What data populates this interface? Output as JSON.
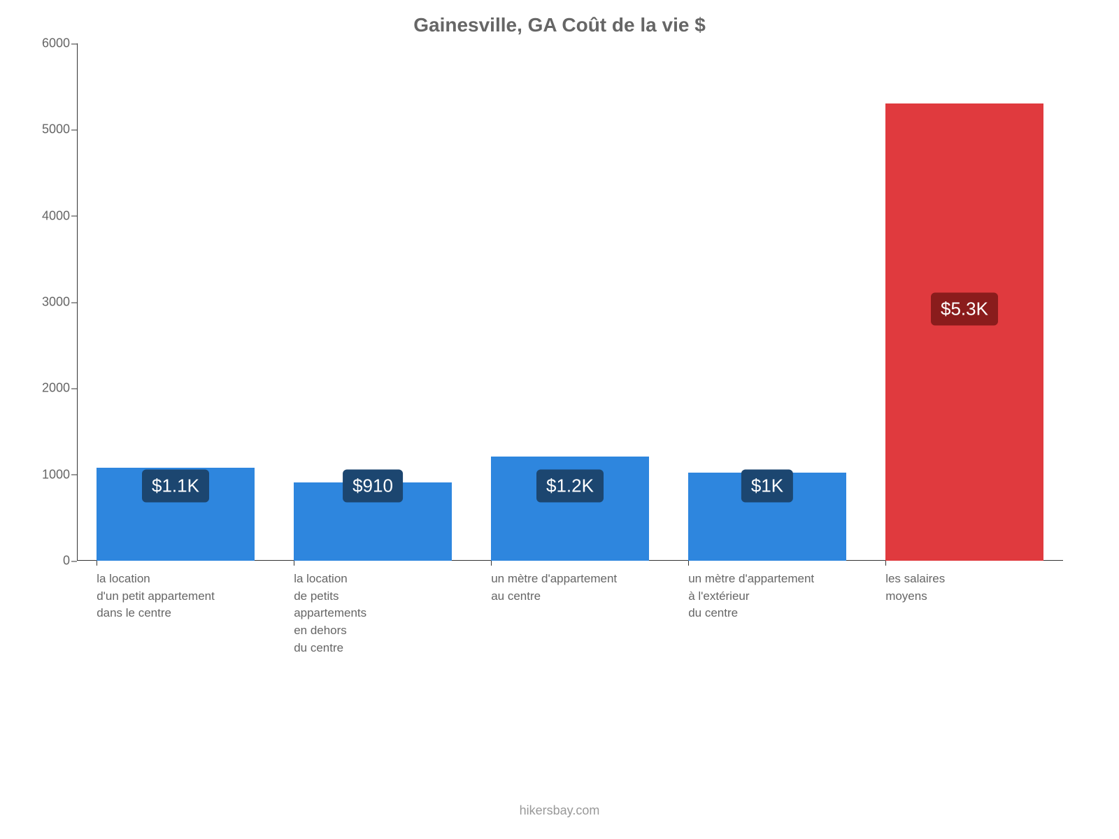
{
  "chart": {
    "type": "bar",
    "title": "Gainesville, GA Coût de la vie $",
    "title_fontsize": 28,
    "title_color": "#666666",
    "background_color": "#ffffff",
    "axis_color": "#333333",
    "label_color": "#666666",
    "ylim": [
      0,
      6000
    ],
    "ytick_step": 1000,
    "yticks": [
      {
        "value": 0,
        "label": "0"
      },
      {
        "value": 1000,
        "label": "1000"
      },
      {
        "value": 2000,
        "label": "2000"
      },
      {
        "value": 3000,
        "label": "3000"
      },
      {
        "value": 4000,
        "label": "4000"
      },
      {
        "value": 5000,
        "label": "5000"
      },
      {
        "value": 6000,
        "label": "6000"
      }
    ],
    "bar_width_ratio": 0.8,
    "bars": [
      {
        "category": "la location\nd'un petit appartement\ndans le centre",
        "value": 1080,
        "display": "$1.1K",
        "bar_color": "#2e86de",
        "badge_bg": "#1c4670",
        "badge_text_color": "#ffffff"
      },
      {
        "category": "la location\nde petits\nappartements\nen dehors\ndu centre",
        "value": 910,
        "display": "$910",
        "bar_color": "#2e86de",
        "badge_bg": "#1c4670",
        "badge_text_color": "#ffffff"
      },
      {
        "category": "un mètre d'appartement\nau centre",
        "value": 1210,
        "display": "$1.2K",
        "bar_color": "#2e86de",
        "badge_bg": "#1c4670",
        "badge_text_color": "#ffffff"
      },
      {
        "category": "un mètre d'appartement\nà l'extérieur\ndu centre",
        "value": 1020,
        "display": "$1K",
        "bar_color": "#2e86de",
        "badge_bg": "#1c4670",
        "badge_text_color": "#ffffff"
      },
      {
        "category": "les salaires\nmoyens",
        "value": 5300,
        "display": "$5.3K",
        "bar_color": "#e03a3e",
        "badge_bg": "#8a1c1c",
        "badge_text_color": "#ffffff"
      }
    ],
    "badge_fontsize": 26,
    "x_label_fontsize": 17,
    "y_label_fontsize": 18,
    "source": "hikersbay.com",
    "source_color": "#999999"
  }
}
